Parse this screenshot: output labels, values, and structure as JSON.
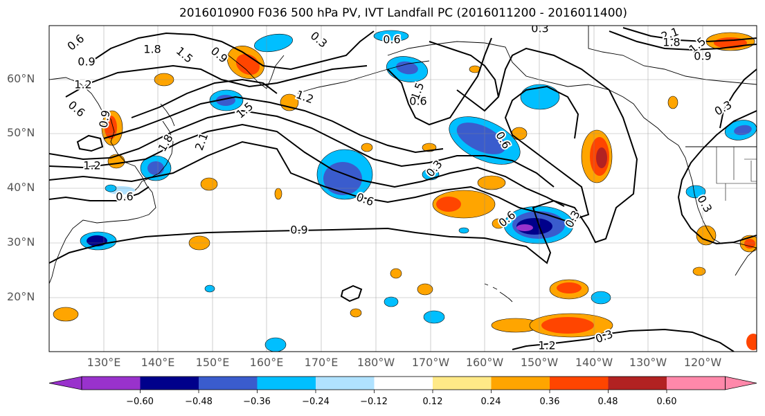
{
  "title": "2016010900 F036 500 hPa PV, IVT Landfall PC (2016011200 - 2016011400)",
  "lat_labels": [
    "60°N",
    "50°N",
    "40°N",
    "30°N",
    "20°N"
  ],
  "lon_labels": [
    "130°E",
    "140°E",
    "150°E",
    "160°E",
    "170°E",
    "180°W",
    "170°W",
    "160°W",
    "150°W",
    "140°W",
    "130°W",
    "120°W"
  ],
  "contour_labels": [
    "0.6",
    "1.8",
    "1.5",
    "0.9",
    "0.3",
    "0.6",
    "0.3",
    "0.9",
    "1.2",
    "0.6",
    "1.2",
    "1.5",
    "1.8",
    "2.1",
    "0.9",
    "1.5",
    "0.6",
    "1.2",
    "0.6",
    "0.3",
    "0.6",
    "0.6",
    "0.9",
    "1.2",
    "0.3",
    "0.3",
    "0.3",
    "0.3",
    "0.6",
    "2.1",
    "1.8",
    "1.5",
    "0.9"
  ],
  "colorbar": {
    "colors": [
      "#9932cc",
      "#00008b",
      "#3a5ccd",
      "#00bfff",
      "#b0e2ff",
      "#ffffff",
      "#ffe987",
      "#ffa500",
      "#ff4500",
      "#b22222",
      "#ff88aa"
    ],
    "tick_labels": [
      "−0.60",
      "−0.48",
      "−0.36",
      "−0.24",
      "−0.12",
      "0.12",
      "0.24",
      "0.36",
      "0.48",
      "0.60"
    ]
  }
}
